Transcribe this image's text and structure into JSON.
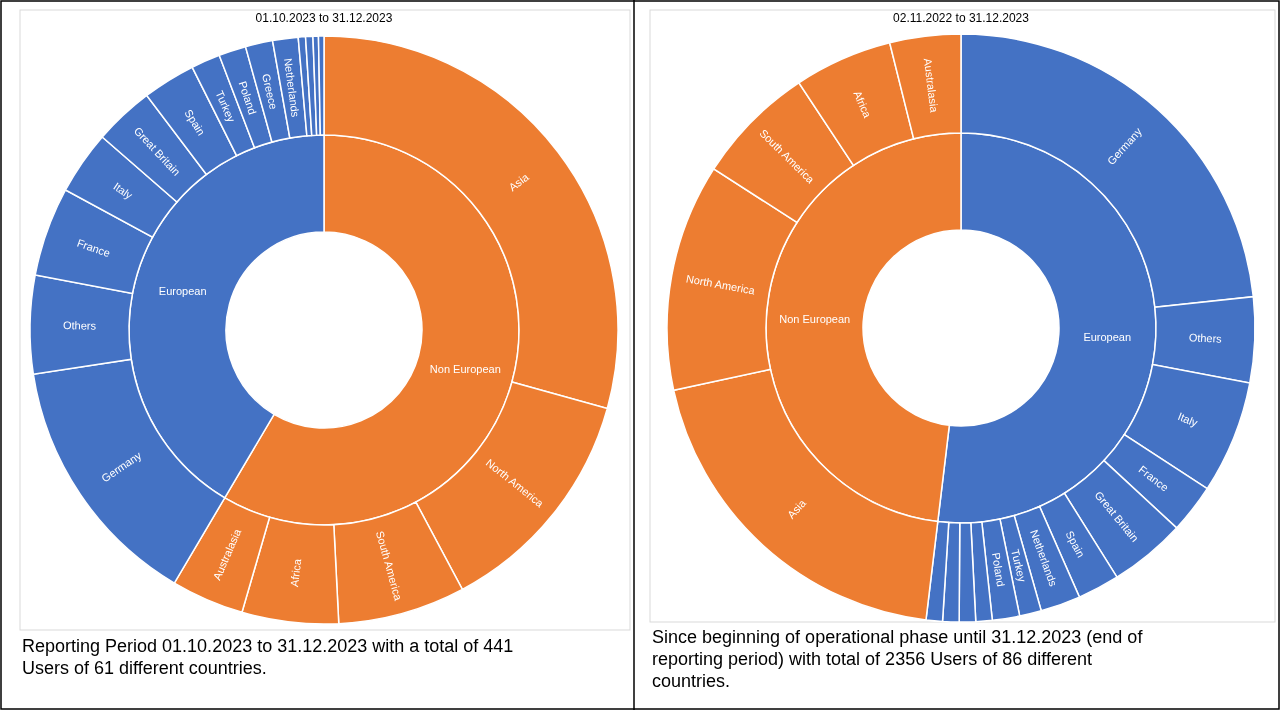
{
  "chart_data": [
    {
      "type": "donut",
      "title": "01.10.2023 to 31.12.2023",
      "categories": [
        "Non European",
        "European"
      ],
      "values": [
        58.5,
        41.5
      ],
      "colors": [
        "#ed7d31",
        "#4472c4"
      ],
      "annotations": [
        "Reporting Period 01.10.2023 to 31.12.2023 with a total of 441 Users of 61 different countries."
      ]
    },
    {
      "type": "donut",
      "categories": [
        "Asia",
        "North America",
        "South America",
        "Africa",
        "Australasia",
        "Germany",
        "Others",
        "France",
        "Italy",
        "Great Britain",
        "Spain",
        "Turkey",
        "Poland",
        "Greece",
        "Netherlands",
        null,
        null,
        null,
        null
      ],
      "values": [
        29.3,
        12.9,
        7.0,
        5.3,
        4.0,
        14.1,
        5.4,
        4.9,
        3.5,
        3.3,
        2.9,
        1.6,
        1.5,
        1.5,
        1.4,
        0.4,
        0.4,
        0.3,
        0.3
      ],
      "colors": [
        "#ed7d31",
        "#ed7d31",
        "#ed7d31",
        "#ed7d31",
        "#ed7d31",
        "#4472c4",
        "#4472c4",
        "#4472c4",
        "#4472c4",
        "#4472c4",
        "#4472c4",
        "#4472c4",
        "#4472c4",
        "#4472c4",
        "#4472c4",
        "#4472c4",
        "#4472c4",
        "#4472c4",
        "#4472c4"
      ]
    },
    {
      "type": "donut",
      "title": "02.11.2022 to 31.12.2023",
      "categories": [
        "European",
        "Non European"
      ],
      "values": [
        51.9,
        48.1
      ],
      "colors": [
        "#4472c4",
        "#ed7d31"
      ],
      "annotations": [
        "Since beginning of operational phase until 31.12.2023 (end of reporting period) with total of 2356 Users of 86 different countries."
      ]
    },
    {
      "type": "donut",
      "categories": [
        "Germany",
        "Others",
        "Italy",
        "France",
        "Great Britain",
        "Spain",
        "Netherlands",
        "Turkey",
        "Poland",
        null,
        null,
        null,
        null,
        "Asia",
        "North America",
        "South America",
        "Africa",
        "Australasia"
      ],
      "values": [
        23.3,
        4.7,
        6.2,
        2.7,
        4.2,
        2.3,
        2.2,
        1.2,
        1.5,
        0.9,
        0.9,
        0.9,
        0.9,
        19.7,
        12.5,
        6.6,
        5.4,
        3.9
      ],
      "colors": [
        "#4472c4",
        "#4472c4",
        "#4472c4",
        "#4472c4",
        "#4472c4",
        "#4472c4",
        "#4472c4",
        "#4472c4",
        "#4472c4",
        "#4472c4",
        "#4472c4",
        "#4472c4",
        "#4472c4",
        "#ed7d31",
        "#ed7d31",
        "#ed7d31",
        "#ed7d31",
        "#ed7d31"
      ]
    }
  ]
}
